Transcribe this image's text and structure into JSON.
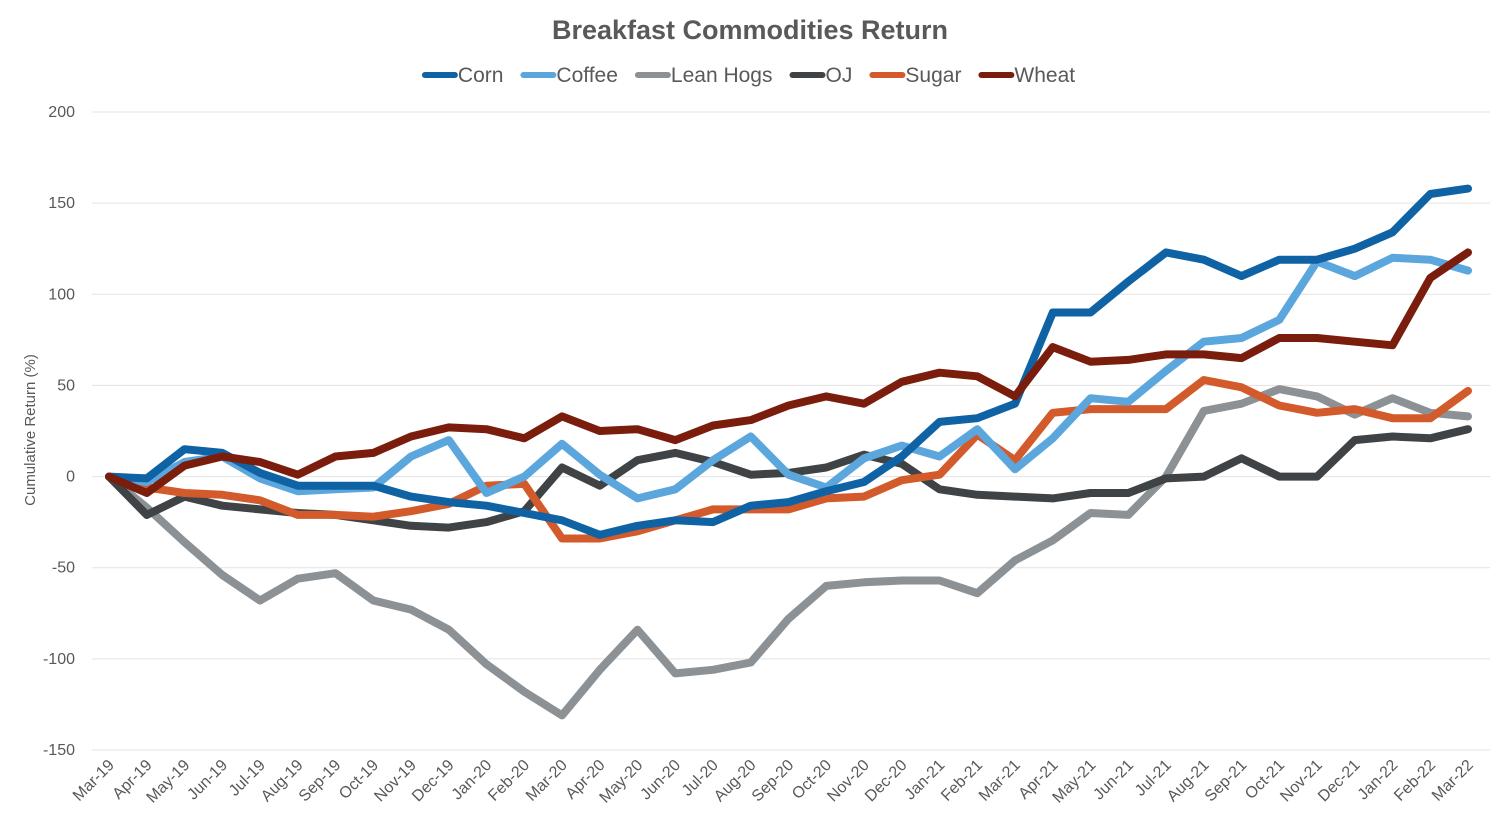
{
  "chart_data": {
    "type": "line",
    "title": "Breakfast Commodities Return",
    "xlabel": "",
    "ylabel": "Cumulative Return (%)",
    "ylim": [
      -150,
      200
    ],
    "yticks": [
      200,
      150,
      100,
      50,
      0,
      -50,
      -100,
      -150
    ],
    "grid": true,
    "legend_position": "top",
    "categories": [
      "Mar-19",
      "Apr-19",
      "May-19",
      "Jun-19",
      "Jul-19",
      "Aug-19",
      "Sep-19",
      "Oct-19",
      "Nov-19",
      "Dec-19",
      "Jan-20",
      "Feb-20",
      "Mar-20",
      "Apr-20",
      "May-20",
      "Jun-20",
      "Jul-20",
      "Aug-20",
      "Sep-20",
      "Oct-20",
      "Nov-20",
      "Dec-20",
      "Jan-21",
      "Feb-21",
      "Mar-21",
      "Apr-21",
      "May-21",
      "Jun-21",
      "Jul-21",
      "Aug-21",
      "Sep-21",
      "Oct-21",
      "Nov-21",
      "Dec-21",
      "Jan-22",
      "Feb-22",
      "Mar-22"
    ],
    "series": [
      {
        "name": "Lean Hogs",
        "color": "#8c9196",
        "values": [
          0,
          -17,
          -36,
          -54,
          -68,
          -56,
          -53,
          -68,
          -73,
          -84,
          -103,
          -118,
          -131,
          -106,
          -84,
          -108,
          -106,
          -102,
          -78,
          -60,
          -58,
          -57,
          -57,
          -64,
          -46,
          -35,
          -20,
          -21,
          0,
          36,
          40,
          48,
          44,
          34,
          43,
          35,
          33
        ]
      },
      {
        "name": "OJ",
        "color": "#3f4346",
        "values": [
          0,
          -21,
          -11,
          -16,
          -18,
          -20,
          -21,
          -24,
          -27,
          -28,
          -25,
          -19,
          5,
          -5,
          9,
          13,
          8,
          1,
          2,
          5,
          12,
          7,
          -7,
          -10,
          -11,
          -12,
          -9,
          -9,
          -1,
          0,
          10,
          0,
          0,
          20,
          22,
          21,
          26
        ]
      },
      {
        "name": "Sugar",
        "color": "#d25a2b",
        "values": [
          0,
          -6,
          -9,
          -10,
          -13,
          -21,
          -21,
          -22,
          -19,
          -15,
          -5,
          -4,
          -34,
          -34,
          -30,
          -24,
          -18,
          -18,
          -18,
          -12,
          -11,
          -2,
          1,
          23,
          9,
          35,
          37,
          37,
          37,
          53,
          49,
          39,
          35,
          37,
          32,
          32,
          47
        ]
      },
      {
        "name": "Coffee",
        "color": "#5ba6dc",
        "values": [
          0,
          -3,
          8,
          11,
          -1,
          -8,
          -7,
          -6,
          11,
          20,
          -9,
          0,
          18,
          1,
          -12,
          -7,
          9,
          22,
          1,
          -6,
          10,
          17,
          11,
          26,
          4,
          21,
          43,
          41,
          58,
          74,
          76,
          86,
          118,
          110,
          120,
          119,
          113
        ]
      },
      {
        "name": "Corn",
        "color": "#0f62a3",
        "values": [
          0,
          -1,
          15,
          13,
          2,
          -5,
          -5,
          -5,
          -11,
          -14,
          -16,
          -20,
          -24,
          -32,
          -27,
          -24,
          -25,
          -16,
          -14,
          -8,
          -3,
          11,
          30,
          32,
          40,
          90,
          90,
          107,
          123,
          119,
          110,
          119,
          119,
          125,
          134,
          155,
          158
        ]
      },
      {
        "name": "Wheat",
        "color": "#7a1d0d",
        "values": [
          0,
          -9,
          6,
          11,
          8,
          1,
          11,
          13,
          22,
          27,
          26,
          21,
          33,
          25,
          26,
          20,
          28,
          31,
          39,
          44,
          40,
          52,
          57,
          55,
          44,
          71,
          63,
          64,
          67,
          67,
          65,
          76,
          76,
          74,
          72,
          109,
          123
        ]
      }
    ],
    "legend_order": [
      "Corn",
      "Coffee",
      "Lean Hogs",
      "OJ",
      "Sugar",
      "Wheat"
    ]
  }
}
